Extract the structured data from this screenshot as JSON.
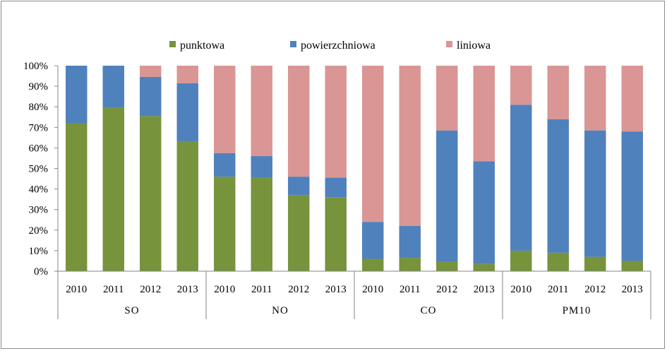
{
  "chart_data": {
    "type": "bar",
    "stacked": "percent",
    "title": "",
    "xlabel": "",
    "ylabel": "",
    "ylim": [
      0,
      100
    ],
    "yticks": [
      "0%",
      "10%",
      "20%",
      "30%",
      "40%",
      "50%",
      "60%",
      "70%",
      "80%",
      "90%",
      "100%"
    ],
    "grid": false,
    "legend_position": "top",
    "groups": [
      {
        "name": "SO",
        "categories": [
          "2010",
          "2011",
          "2012",
          "2013"
        ]
      },
      {
        "name": "NO",
        "categories": [
          "2010",
          "2011",
          "2012",
          "2013"
        ]
      },
      {
        "name": "CO",
        "categories": [
          "2010",
          "2011",
          "2012",
          "2013"
        ]
      },
      {
        "name": "PM10",
        "categories": [
          "2010",
          "2011",
          "2012",
          "2013"
        ]
      }
    ],
    "series": [
      {
        "name": "punktowa",
        "color": "#77933c",
        "values": [
          72,
          79.5,
          75.5,
          63,
          46,
          45.5,
          37,
          36,
          6,
          6.5,
          4.5,
          3.5,
          10,
          9,
          7,
          5
        ]
      },
      {
        "name": "powierzchniowa",
        "color": "#4f81bd",
        "values": [
          28,
          20.5,
          19,
          28.5,
          11.5,
          10.5,
          9,
          9.5,
          18,
          15.5,
          64,
          50,
          71,
          65,
          61.5,
          63
        ]
      },
      {
        "name": "liniowa",
        "color": "#d99694",
        "values": [
          0,
          0,
          5.5,
          8.5,
          42.5,
          44,
          54,
          54.5,
          76,
          78,
          31.5,
          46.5,
          19,
          26,
          31.5,
          32
        ]
      }
    ]
  }
}
